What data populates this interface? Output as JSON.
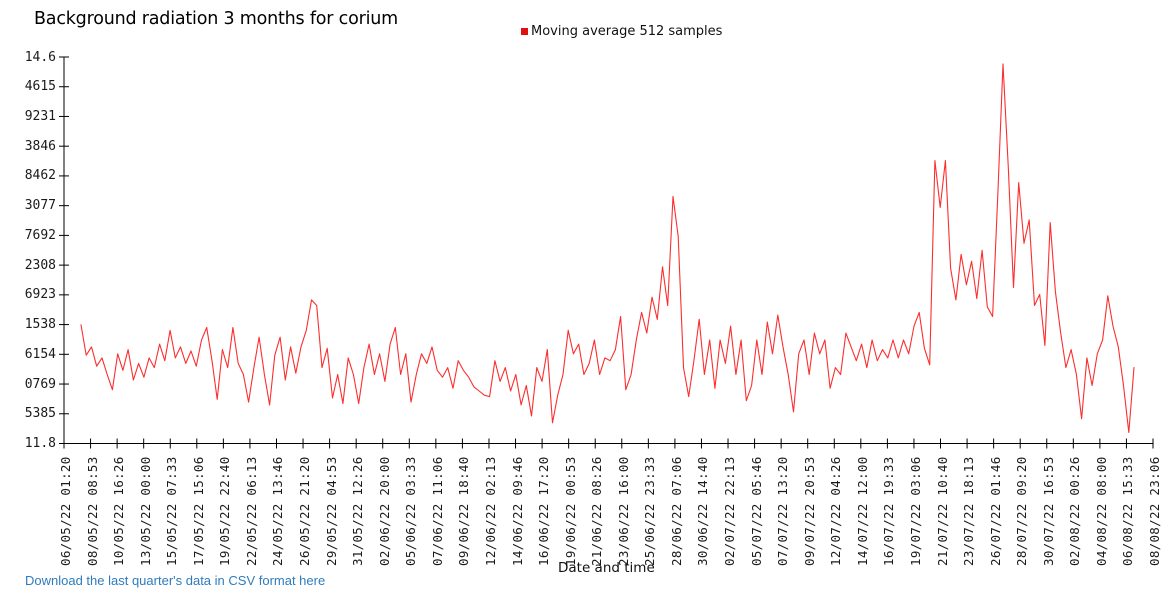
{
  "chart": {
    "title": "Background radiation 3 months for corium",
    "legend_label": "Moving average 512 samples",
    "xlabel": "Date and time"
  },
  "link": {
    "text": "Download the last quarter's data in CSV format here",
    "color": "#2e7cbd"
  },
  "colors": {
    "line": "#fc2e2e",
    "legend_marker": "#e01010",
    "axis": "#000000",
    "tick_text": "#1a1a1a"
  },
  "chart_data": {
    "type": "line",
    "title": "Background radiation 3 months for corium",
    "xlabel": "Date and time",
    "ylabel": "",
    "grid": false,
    "legend_position": "top-center",
    "series_name": "Moving average 512 samples",
    "line_color": "#fc2e2e",
    "y_axis_range": [
      11.8,
      14.6
    ],
    "y_tick_labels": [
      "14.6",
      "4615",
      "9231",
      "3846",
      "8462",
      "3077",
      "7692",
      "2308",
      "6923",
      "1538",
      "6154",
      "0769",
      "5385",
      "11.8"
    ],
    "x_tick_labels": [
      "06/05/22 01:20",
      "08/05/22 08:53",
      "10/05/22 16:26",
      "13/05/22 00:00",
      "15/05/22 07:33",
      "17/05/22 15:06",
      "19/05/22 22:40",
      "22/05/22 06:13",
      "24/05/22 13:46",
      "26/05/22 21:20",
      "29/05/22 04:53",
      "31/05/22 12:26",
      "02/06/22 20:00",
      "05/06/22 03:33",
      "07/06/22 11:06",
      "09/06/22 18:40",
      "12/06/22 02:13",
      "14/06/22 09:46",
      "16/06/22 17:20",
      "19/06/22 00:53",
      "21/06/22 08:26",
      "23/06/22 16:00",
      "25/06/22 23:33",
      "28/06/22 07:06",
      "30/06/22 14:40",
      "02/07/22 22:13",
      "05/07/22 05:46",
      "07/07/22 13:20",
      "09/07/22 20:53",
      "12/07/22 04:26",
      "14/07/22 12:00",
      "16/07/22 19:33",
      "19/07/22 03:06",
      "21/07/22 10:40",
      "23/07/22 18:13",
      "26/07/22 01:46",
      "28/07/22 09:20",
      "30/07/22 16:53",
      "02/08/22 00:26",
      "04/08/22 08:00",
      "06/08/22 15:33",
      "08/08/22 23:06"
    ],
    "values": [
      12.66,
      12.44,
      12.5,
      12.36,
      12.42,
      12.3,
      12.19,
      12.45,
      12.33,
      12.48,
      12.26,
      12.38,
      12.28,
      12.42,
      12.35,
      12.52,
      12.4,
      12.62,
      12.42,
      12.5,
      12.38,
      12.47,
      12.36,
      12.55,
      12.64,
      12.4,
      12.12,
      12.48,
      12.35,
      12.64,
      12.38,
      12.3,
      12.1,
      12.35,
      12.57,
      12.3,
      12.08,
      12.44,
      12.57,
      12.26,
      12.5,
      12.31,
      12.5,
      12.62,
      12.84,
      12.8,
      12.35,
      12.49,
      12.13,
      12.3,
      12.09,
      12.42,
      12.3,
      12.09,
      12.35,
      12.52,
      12.3,
      12.45,
      12.25,
      12.52,
      12.64,
      12.3,
      12.45,
      12.1,
      12.3,
      12.45,
      12.38,
      12.5,
      12.33,
      12.28,
      12.35,
      12.2,
      12.4,
      12.33,
      12.28,
      12.21,
      12.18,
      12.15,
      12.14,
      12.4,
      12.25,
      12.35,
      12.18,
      12.3,
      12.08,
      12.22,
      12.0,
      12.35,
      12.25,
      12.48,
      11.95,
      12.15,
      12.3,
      12.62,
      12.45,
      12.52,
      12.3,
      12.38,
      12.55,
      12.3,
      12.42,
      12.4,
      12.48,
      12.72,
      12.19,
      12.3,
      12.55,
      12.75,
      12.6,
      12.86,
      12.7,
      13.08,
      12.8,
      13.59,
      13.3,
      12.35,
      12.14,
      12.4,
      12.7,
      12.3,
      12.55,
      12.2,
      12.55,
      12.38,
      12.65,
      12.3,
      12.55,
      12.11,
      12.22,
      12.55,
      12.3,
      12.68,
      12.45,
      12.73,
      12.5,
      12.3,
      12.03,
      12.45,
      12.55,
      12.3,
      12.6,
      12.45,
      12.55,
      12.2,
      12.35,
      12.3,
      12.6,
      12.5,
      12.4,
      12.52,
      12.35,
      12.55,
      12.4,
      12.48,
      12.42,
      12.55,
      12.42,
      12.55,
      12.45,
      12.65,
      12.75,
      12.49,
      12.37,
      13.85,
      13.51,
      13.85,
      13.07,
      12.84,
      13.17,
      12.95,
      13.12,
      12.85,
      13.2,
      12.79,
      12.72,
      13.6,
      14.55,
      13.8,
      12.93,
      13.69,
      13.25,
      13.42,
      12.8,
      12.88,
      12.51,
      13.4,
      12.9,
      12.6,
      12.35,
      12.48,
      12.3,
      11.98,
      12.42,
      12.22,
      12.45,
      12.55,
      12.87,
      12.65,
      12.5,
      12.22,
      11.88,
      12.35
    ]
  }
}
